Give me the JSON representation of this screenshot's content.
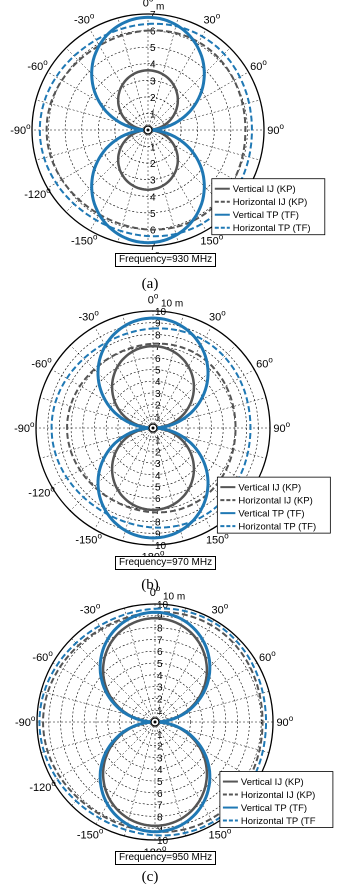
{
  "chart_data": [
    {
      "type": "polar",
      "caption": "(a)",
      "frequency_label": "Frequency=930 MHz",
      "radial_unit_label": "m",
      "rmax": 7,
      "radial_ticks": [
        "0",
        "1",
        "2",
        "3",
        "4",
        "5",
        "6",
        "7"
      ],
      "angle_ticks": [
        "0",
        "30",
        "60",
        "90",
        "120",
        "150",
        "180",
        "-150",
        "-120",
        "-90",
        "-60",
        "-30"
      ],
      "legend": {
        "placement": "bottom-right",
        "entries": [
          "Vertical IJ (KP)",
          "Horizontal IJ (KP)",
          "Vertical TP (TF)",
          "Horizontal TP (TF)"
        ]
      },
      "series": [
        {
          "name": "Vertical IJ (KP)",
          "shape": "figure-eight",
          "max_range": 3.6,
          "color": "#555555",
          "style": "solid"
        },
        {
          "name": "Horizontal IJ (KP)",
          "shape": "omni",
          "range": 6.0,
          "color": "#555555",
          "style": "dashed"
        },
        {
          "name": "Vertical TP (TF)",
          "shape": "figure-eight",
          "max_range": 6.8,
          "color": "#1f78b4",
          "style": "solid"
        },
        {
          "name": "Horizontal TP (TF)",
          "shape": "omni",
          "range": 6.4,
          "color": "#1f78b4",
          "style": "dashed"
        }
      ]
    },
    {
      "type": "polar",
      "caption": "(b)",
      "frequency_label": "Frequency=970 MHz",
      "radial_unit_label": "10 m",
      "rmax": 10,
      "radial_ticks": [
        "0",
        "1",
        "2",
        "3",
        "4",
        "5",
        "6",
        "7",
        "8",
        "9",
        "10"
      ],
      "angle_ticks": [
        "0",
        "30",
        "60",
        "90",
        "120",
        "150",
        "180",
        "-150",
        "-120",
        "-90",
        "-60",
        "-30"
      ],
      "legend": {
        "placement": "bottom-right",
        "entries": [
          "Vertical IJ (KP)",
          "Horizontal IJ (KP)",
          "Vertical TP (TF)",
          "Horizontal TP (TF)"
        ]
      },
      "series": [
        {
          "name": "Vertical IJ (KP)",
          "shape": "figure-eight",
          "max_range": 7.0,
          "color": "#555555",
          "style": "solid"
        },
        {
          "name": "Horizontal IJ (KP)",
          "shape": "omni",
          "range": 7.2,
          "color": "#555555",
          "style": "dashed"
        },
        {
          "name": "Vertical TP (TF)",
          "shape": "figure-eight",
          "max_range": 9.4,
          "color": "#1f78b4",
          "style": "solid"
        },
        {
          "name": "Horizontal TP (TF)",
          "shape": "omni",
          "range": 8.5,
          "color": "#1f78b4",
          "style": "dashed"
        }
      ]
    },
    {
      "type": "polar",
      "caption": "(c)",
      "frequency_label": "Frequency=950 MHz",
      "radial_unit_label": "10 m",
      "rmax": 10,
      "radial_ticks": [
        "0",
        "1",
        "2",
        "3",
        "4",
        "5",
        "6",
        "7",
        "8",
        "9",
        "10"
      ],
      "angle_ticks": [
        "0",
        "30",
        "60",
        "90",
        "120",
        "150",
        "180",
        "-150",
        "-120",
        "-90",
        "-60",
        "-30"
      ],
      "legend": {
        "placement": "bottom-right",
        "entries": [
          "Vertical IJ (KP)",
          "Horizontal IJ (KP)",
          "Vertical TP (TF)",
          "Horizontal TP (TF"
        ]
      },
      "series": [
        {
          "name": "Vertical IJ (KP)",
          "shape": "figure-eight",
          "max_range": 8.8,
          "color": "#555555",
          "style": "solid"
        },
        {
          "name": "Horizontal IJ (KP)",
          "shape": "omni",
          "range": 9.3,
          "color": "#555555",
          "style": "dashed"
        },
        {
          "name": "Vertical TP (TF)",
          "shape": "figure-eight",
          "max_range": 9.3,
          "color": "#1f78b4",
          "style": "solid"
        },
        {
          "name": "Horizontal TP (TF)",
          "shape": "omni",
          "range": 9.6,
          "color": "#1f78b4",
          "style": "dashed"
        }
      ]
    }
  ]
}
